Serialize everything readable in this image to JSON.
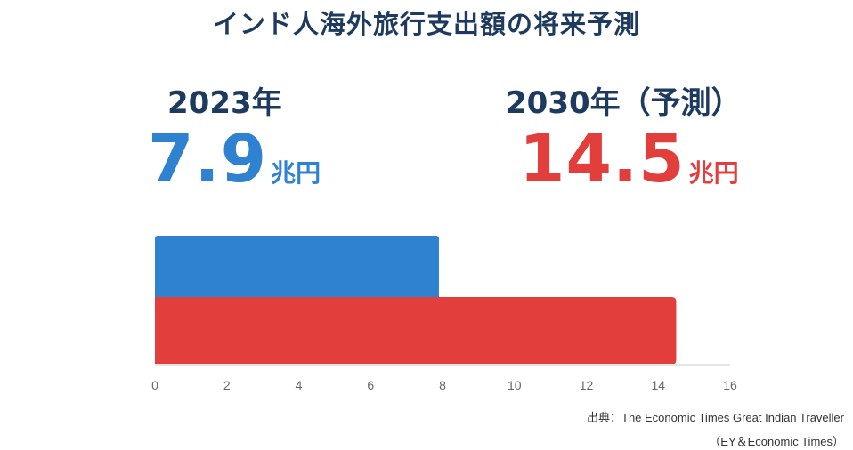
{
  "title": "インド人海外旅行支出額の将来予測",
  "left": {
    "year_label": "2023年",
    "value": "7.9",
    "unit": "兆円"
  },
  "right": {
    "year_label": "2030年（予測）",
    "value": "14.5",
    "unit": "兆円"
  },
  "colors": {
    "left": "#2f82cf",
    "right": "#e23e3c",
    "axis": "#e6e6e6",
    "tick": "#666666"
  },
  "chart_data": {
    "type": "bar",
    "orientation": "horizontal",
    "categories": [
      "2023年",
      "2030年（予測）"
    ],
    "values": [
      7.9,
      14.5
    ],
    "unit": "兆円",
    "xlim": [
      0,
      16
    ],
    "xticks": [
      "0",
      "2",
      "4",
      "6",
      "8",
      "10",
      "12",
      "14",
      "16"
    ],
    "title": "インド人海外旅行支出額の将来予測",
    "xlabel": "",
    "ylabel": "",
    "grid": false
  },
  "source": {
    "line1": "出典：The Economic Times Great Indian Traveller",
    "line2": "（EY＆Economic Times）"
  }
}
